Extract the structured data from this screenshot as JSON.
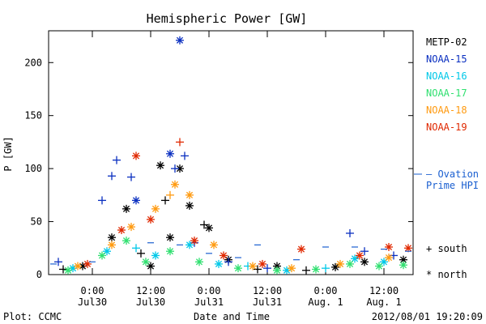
{
  "chart_data": {
    "type": "scatter",
    "title": "Hemispheric Power [GW]",
    "ylabel": "P [GW]",
    "xlabel": "Date and Time",
    "ylim": [
      0,
      230
    ],
    "yticks": [
      0,
      50,
      100,
      150,
      200
    ],
    "xlim": [
      "2012-07-29T15:00",
      "2012-08-01T18:00"
    ],
    "xticks": [
      {
        "t": "2012-07-30T00:00",
        "top": "0:00",
        "bottom": "Jul30"
      },
      {
        "t": "2012-07-30T12:00",
        "top": "12:00",
        "bottom": "Jul30"
      },
      {
        "t": "2012-07-31T00:00",
        "top": "0:00",
        "bottom": "Jul31"
      },
      {
        "t": "2012-07-31T12:00",
        "top": "12:00",
        "bottom": "Jul31"
      },
      {
        "t": "2012-08-01T00:00",
        "top": "0:00",
        "bottom": "Aug. 1"
      },
      {
        "t": "2012-08-01T12:00",
        "top": "12:00",
        "bottom": "Aug. 1"
      }
    ],
    "series": [
      {
        "name": "METP-02",
        "color": "#000000",
        "points": [
          [
            "2012-07-29T18:00",
            5,
            "+"
          ],
          [
            "2012-07-29T22:00",
            8,
            "*"
          ],
          [
            "2012-07-30T04:00",
            35,
            "*"
          ],
          [
            "2012-07-30T07:00",
            62,
            "*"
          ],
          [
            "2012-07-30T10:00",
            20,
            "+"
          ],
          [
            "2012-07-30T12:00",
            8,
            "*"
          ],
          [
            "2012-07-30T14:00",
            103,
            "*"
          ],
          [
            "2012-07-30T15:00",
            70,
            "+"
          ],
          [
            "2012-07-30T16:00",
            35,
            "*"
          ],
          [
            "2012-07-30T18:00",
            100,
            "*"
          ],
          [
            "2012-07-30T20:00",
            65,
            "*"
          ],
          [
            "2012-07-30T23:00",
            47,
            "+"
          ],
          [
            "2012-07-31T00:00",
            44,
            "*"
          ],
          [
            "2012-07-31T04:00",
            14,
            "*"
          ],
          [
            "2012-07-31T10:00",
            5,
            "+"
          ],
          [
            "2012-07-31T14:00",
            8,
            "*"
          ],
          [
            "2012-07-31T20:00",
            4,
            "+"
          ],
          [
            "2012-08-01T02:00",
            7,
            "*"
          ],
          [
            "2012-08-01T08:00",
            12,
            "*"
          ],
          [
            "2012-08-01T16:00",
            14,
            "*"
          ]
        ]
      },
      {
        "name": "NOAA-15",
        "color": "#0a2fc0",
        "points": [
          [
            "2012-07-29T17:00",
            12,
            "+"
          ],
          [
            "2012-07-30T02:00",
            70,
            "+"
          ],
          [
            "2012-07-30T04:00",
            93,
            "+"
          ],
          [
            "2012-07-30T05:00",
            108,
            "+"
          ],
          [
            "2012-07-30T08:00",
            92,
            "+"
          ],
          [
            "2012-07-30T09:00",
            70,
            "*"
          ],
          [
            "2012-07-30T16:00",
            114,
            "*"
          ],
          [
            "2012-07-30T17:00",
            100,
            "+"
          ],
          [
            "2012-07-30T18:00",
            221,
            "*"
          ],
          [
            "2012-07-30T19:00",
            112,
            "+"
          ],
          [
            "2012-07-30T21:00",
            30,
            "+"
          ],
          [
            "2012-07-31T04:00",
            12,
            "+"
          ],
          [
            "2012-07-31T12:00",
            6,
            "+"
          ],
          [
            "2012-08-01T05:00",
            39,
            "+"
          ],
          [
            "2012-08-01T08:00",
            22,
            "+"
          ],
          [
            "2012-08-01T14:00",
            18,
            "+"
          ]
        ]
      },
      {
        "name": "NOAA-16",
        "color": "#00c8e8",
        "points": [
          [
            "2012-07-29T20:00",
            6,
            "*"
          ],
          [
            "2012-07-30T03:00",
            22,
            "*"
          ],
          [
            "2012-07-30T09:00",
            25,
            "+"
          ],
          [
            "2012-07-30T13:00",
            18,
            "*"
          ],
          [
            "2012-07-30T20:00",
            28,
            "*"
          ],
          [
            "2012-07-31T02:00",
            10,
            "*"
          ],
          [
            "2012-07-31T08:00",
            8,
            "+"
          ],
          [
            "2012-07-31T16:00",
            4,
            "*"
          ],
          [
            "2012-08-01T00:00",
            6,
            "+"
          ],
          [
            "2012-08-01T06:00",
            15,
            "*"
          ],
          [
            "2012-08-01T12:00",
            12,
            "*"
          ]
        ]
      },
      {
        "name": "NOAA-17",
        "color": "#30e070",
        "points": [
          [
            "2012-07-29T19:00",
            4,
            "*"
          ],
          [
            "2012-07-30T02:00",
            18,
            "*"
          ],
          [
            "2012-07-30T07:00",
            32,
            "*"
          ],
          [
            "2012-07-30T11:00",
            12,
            "*"
          ],
          [
            "2012-07-30T16:00",
            22,
            "*"
          ],
          [
            "2012-07-30T22:00",
            12,
            "*"
          ],
          [
            "2012-07-31T06:00",
            6,
            "*"
          ],
          [
            "2012-07-31T14:00",
            4,
            "*"
          ],
          [
            "2012-07-31T22:00",
            5,
            "*"
          ],
          [
            "2012-08-01T05:00",
            10,
            "*"
          ],
          [
            "2012-08-01T11:00",
            8,
            "*"
          ],
          [
            "2012-08-01T16:00",
            9,
            "*"
          ]
        ]
      },
      {
        "name": "NOAA-18",
        "color": "#ff9a10",
        "points": [
          [
            "2012-07-29T21:00",
            8,
            "*"
          ],
          [
            "2012-07-30T04:00",
            28,
            "*"
          ],
          [
            "2012-07-30T08:00",
            45,
            "*"
          ],
          [
            "2012-07-30T13:00",
            62,
            "*"
          ],
          [
            "2012-07-30T16:00",
            75,
            "+"
          ],
          [
            "2012-07-30T17:00",
            85,
            "*"
          ],
          [
            "2012-07-30T20:00",
            75,
            "*"
          ],
          [
            "2012-07-31T01:00",
            28,
            "*"
          ],
          [
            "2012-07-31T09:00",
            8,
            "*"
          ],
          [
            "2012-07-31T17:00",
            6,
            "*"
          ],
          [
            "2012-08-01T03:00",
            10,
            "*"
          ],
          [
            "2012-08-01T13:00",
            16,
            "*"
          ]
        ]
      },
      {
        "name": "NOAA-19",
        "color": "#e02800",
        "points": [
          [
            "2012-07-29T23:00",
            10,
            "*"
          ],
          [
            "2012-07-30T06:00",
            42,
            "*"
          ],
          [
            "2012-07-30T09:00",
            112,
            "*"
          ],
          [
            "2012-07-30T12:00",
            52,
            "*"
          ],
          [
            "2012-07-30T18:00",
            125,
            "+"
          ],
          [
            "2012-07-30T21:00",
            32,
            "*"
          ],
          [
            "2012-07-31T03:00",
            18,
            "*"
          ],
          [
            "2012-07-31T11:00",
            10,
            "*"
          ],
          [
            "2012-07-31T19:00",
            24,
            "*"
          ],
          [
            "2012-08-01T07:00",
            18,
            "*"
          ],
          [
            "2012-08-01T13:00",
            26,
            "*"
          ],
          [
            "2012-08-01T17:00",
            25,
            "*"
          ]
        ]
      },
      {
        "name": "- Ovation Prime HPI",
        "color": "#1a5fd0",
        "points": [
          [
            "2012-07-29T16:00",
            10,
            "-"
          ],
          [
            "2012-07-30T00:00",
            12,
            "-"
          ],
          [
            "2012-07-30T12:00",
            30,
            "-"
          ],
          [
            "2012-07-30T18:00",
            28,
            "-"
          ],
          [
            "2012-07-31T00:00",
            20,
            "-"
          ],
          [
            "2012-07-31T06:00",
            16,
            "-"
          ],
          [
            "2012-07-31T10:00",
            28,
            "-"
          ],
          [
            "2012-07-31T18:00",
            14,
            "-"
          ],
          [
            "2012-08-01T00:00",
            26,
            "-"
          ],
          [
            "2012-08-01T06:00",
            26,
            "-"
          ],
          [
            "2012-08-01T12:00",
            24,
            "-"
          ],
          [
            "2012-08-01T17:00",
            22,
            "-"
          ]
        ]
      }
    ],
    "legend": [
      {
        "label": "METP-02",
        "color": "#000000"
      },
      {
        "label": "NOAA-15",
        "color": "#0a2fc0"
      },
      {
        "label": "NOAA-16",
        "color": "#00c8e8"
      },
      {
        "label": "NOAA-17",
        "color": "#30e070"
      },
      {
        "label": "NOAA-18",
        "color": "#ff9a10"
      },
      {
        "label": "NOAA-19",
        "color": "#e02800"
      }
    ],
    "ovation_label": {
      "line1": "— Ovation",
      "line2": "Prime HPI",
      "color": "#1a5fd0"
    },
    "marker_key": [
      {
        "symbol": "+",
        "label": "south"
      },
      {
        "symbol": "*",
        "label": "north"
      }
    ],
    "footer_left": "Plot: CCMC",
    "footer_right": "2012/08/01 19:20:09"
  }
}
